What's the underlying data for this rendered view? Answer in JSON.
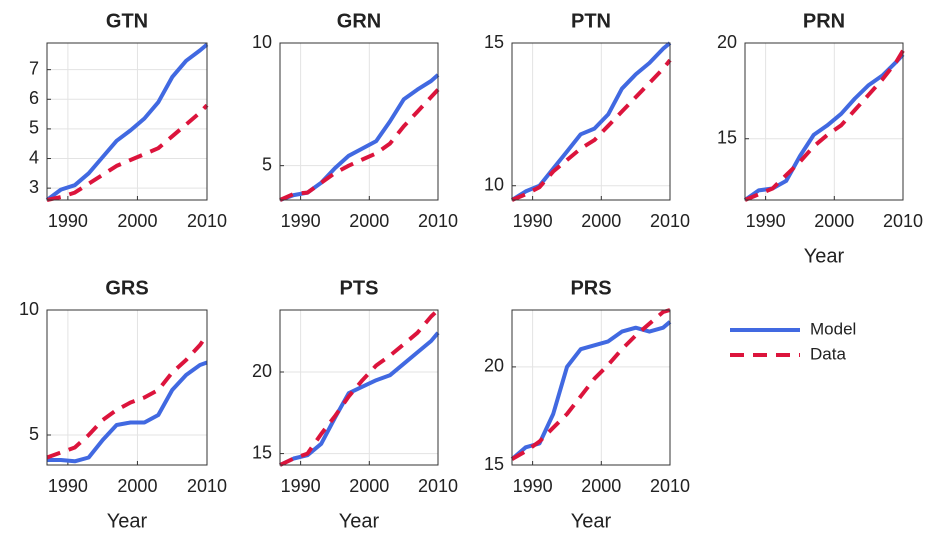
{
  "chart_data": [
    {
      "type": "line",
      "title": "GTN",
      "x": [
        1987,
        1989,
        1991,
        1993,
        1995,
        1997,
        1999,
        2001,
        2003,
        2005,
        2007,
        2009,
        2010
      ],
      "xlim": [
        1987,
        2010
      ],
      "xticks": [
        1990,
        2000,
        2010
      ],
      "ylim": [
        2.6,
        7.9
      ],
      "yticks": [
        3,
        4,
        5,
        6,
        7
      ],
      "grid": true,
      "series": [
        {
          "name": "Model",
          "color": "#4169e1",
          "values": [
            2.6,
            2.95,
            3.1,
            3.5,
            4.05,
            4.6,
            4.95,
            5.35,
            5.9,
            6.75,
            7.3,
            7.65,
            7.85
          ]
        },
        {
          "name": "Data",
          "color": "#dc143c",
          "values": [
            2.6,
            2.7,
            2.85,
            3.15,
            3.45,
            3.75,
            3.95,
            4.15,
            4.35,
            4.75,
            5.15,
            5.55,
            5.8
          ]
        }
      ]
    },
    {
      "type": "line",
      "title": "GRN",
      "x": [
        1987,
        1989,
        1991,
        1993,
        1995,
        1997,
        1999,
        2001,
        2003,
        2005,
        2007,
        2009,
        2010
      ],
      "xlim": [
        1987,
        2010
      ],
      "xticks": [
        1990,
        2000,
        2010
      ],
      "ylim": [
        3.6,
        10
      ],
      "yticks": [
        5,
        10
      ],
      "grid": true,
      "series": [
        {
          "name": "Model",
          "color": "#4169e1",
          "values": [
            3.6,
            3.8,
            3.9,
            4.3,
            4.9,
            5.4,
            5.7,
            6.0,
            6.8,
            7.7,
            8.1,
            8.45,
            8.7
          ]
        },
        {
          "name": "Data",
          "color": "#dc143c",
          "values": [
            3.6,
            3.85,
            3.9,
            4.3,
            4.7,
            5.0,
            5.25,
            5.5,
            5.9,
            6.6,
            7.2,
            7.8,
            8.1
          ]
        }
      ]
    },
    {
      "type": "line",
      "title": "PTN",
      "x": [
        1987,
        1989,
        1991,
        1993,
        1995,
        1997,
        1999,
        2001,
        2003,
        2005,
        2007,
        2009,
        2010
      ],
      "xlim": [
        1987,
        2010
      ],
      "xticks": [
        1990,
        2000,
        2010
      ],
      "ylim": [
        9.5,
        15
      ],
      "yticks": [
        10,
        15
      ],
      "grid": true,
      "series": [
        {
          "name": "Model",
          "color": "#4169e1",
          "values": [
            9.5,
            9.8,
            10.0,
            10.6,
            11.2,
            11.8,
            12.0,
            12.5,
            13.4,
            13.9,
            14.3,
            14.8,
            15.0
          ]
        },
        {
          "name": "Data",
          "color": "#dc143c",
          "values": [
            9.5,
            9.7,
            9.95,
            10.5,
            10.9,
            11.3,
            11.6,
            12.1,
            12.6,
            13.1,
            13.6,
            14.1,
            14.4
          ]
        }
      ]
    },
    {
      "type": "line",
      "title": "PRN",
      "xlabel": "Year",
      "x": [
        1987,
        1989,
        1991,
        1993,
        1995,
        1997,
        1999,
        2001,
        2003,
        2005,
        2007,
        2009,
        2010
      ],
      "xlim": [
        1987,
        2010
      ],
      "xticks": [
        1990,
        2000,
        2010
      ],
      "ylim": [
        11.8,
        20
      ],
      "yticks": [
        15,
        20
      ],
      "grid": true,
      "series": [
        {
          "name": "Model",
          "color": "#4169e1",
          "values": [
            11.8,
            12.3,
            12.4,
            12.8,
            14.1,
            15.2,
            15.7,
            16.3,
            17.1,
            17.8,
            18.3,
            19.0,
            19.4
          ]
        },
        {
          "name": "Data",
          "color": "#dc143c",
          "values": [
            11.8,
            12.1,
            12.4,
            13.1,
            13.8,
            14.6,
            15.2,
            15.7,
            16.5,
            17.3,
            18.1,
            19.0,
            19.6
          ]
        }
      ]
    },
    {
      "type": "line",
      "title": "GRS",
      "xlabel": "Year",
      "x": [
        1987,
        1989,
        1991,
        1993,
        1995,
        1997,
        1999,
        2001,
        2003,
        2005,
        2007,
        2009,
        2010
      ],
      "xlim": [
        1987,
        2010
      ],
      "xticks": [
        1990,
        2000,
        2010
      ],
      "ylim": [
        3.8,
        10
      ],
      "yticks": [
        5,
        10
      ],
      "grid": true,
      "series": [
        {
          "name": "Model",
          "color": "#4169e1",
          "values": [
            4.0,
            4.0,
            3.95,
            4.1,
            4.8,
            5.4,
            5.5,
            5.5,
            5.8,
            6.8,
            7.4,
            7.8,
            7.9
          ]
        },
        {
          "name": "Data",
          "color": "#dc143c",
          "values": [
            4.1,
            4.3,
            4.5,
            5.0,
            5.6,
            6.0,
            6.3,
            6.5,
            6.8,
            7.5,
            8.0,
            8.6,
            9.0
          ]
        }
      ]
    },
    {
      "type": "line",
      "title": "PTS",
      "xlabel": "Year",
      "x": [
        1987,
        1989,
        1991,
        1993,
        1995,
        1997,
        1999,
        2001,
        2003,
        2005,
        2007,
        2009,
        2010
      ],
      "xlim": [
        1987,
        2010
      ],
      "xticks": [
        1990,
        2000,
        2010
      ],
      "ylim": [
        14.3,
        23.8
      ],
      "yticks": [
        15,
        20
      ],
      "grid": true,
      "series": [
        {
          "name": "Model",
          "color": "#4169e1",
          "values": [
            14.3,
            14.7,
            14.9,
            15.6,
            17.2,
            18.7,
            19.1,
            19.5,
            19.8,
            20.5,
            21.2,
            21.9,
            22.4
          ]
        },
        {
          "name": "Data",
          "color": "#dc143c",
          "values": [
            14.3,
            14.7,
            15.0,
            16.2,
            17.3,
            18.5,
            19.5,
            20.4,
            21.0,
            21.7,
            22.4,
            23.4,
            23.8
          ]
        }
      ]
    },
    {
      "type": "line",
      "title": "PRS",
      "xlabel": "Year",
      "x": [
        1987,
        1989,
        1991,
        1993,
        1995,
        1997,
        1999,
        2001,
        2003,
        2005,
        2007,
        2009,
        2010
      ],
      "xlim": [
        1987,
        2010
      ],
      "xticks": [
        1990,
        2000,
        2010
      ],
      "ylim": [
        15,
        22.9
      ],
      "yticks": [
        15,
        20
      ],
      "grid": true,
      "series": [
        {
          "name": "Model",
          "color": "#4169e1",
          "values": [
            15.3,
            15.9,
            16.1,
            17.6,
            20.0,
            20.9,
            21.1,
            21.3,
            21.8,
            22.0,
            21.8,
            22.0,
            22.3
          ]
        },
        {
          "name": "Data",
          "color": "#dc143c",
          "values": [
            15.3,
            15.7,
            16.2,
            16.9,
            17.6,
            18.5,
            19.4,
            20.1,
            20.9,
            21.6,
            22.2,
            22.8,
            22.9
          ]
        }
      ]
    }
  ]
}
